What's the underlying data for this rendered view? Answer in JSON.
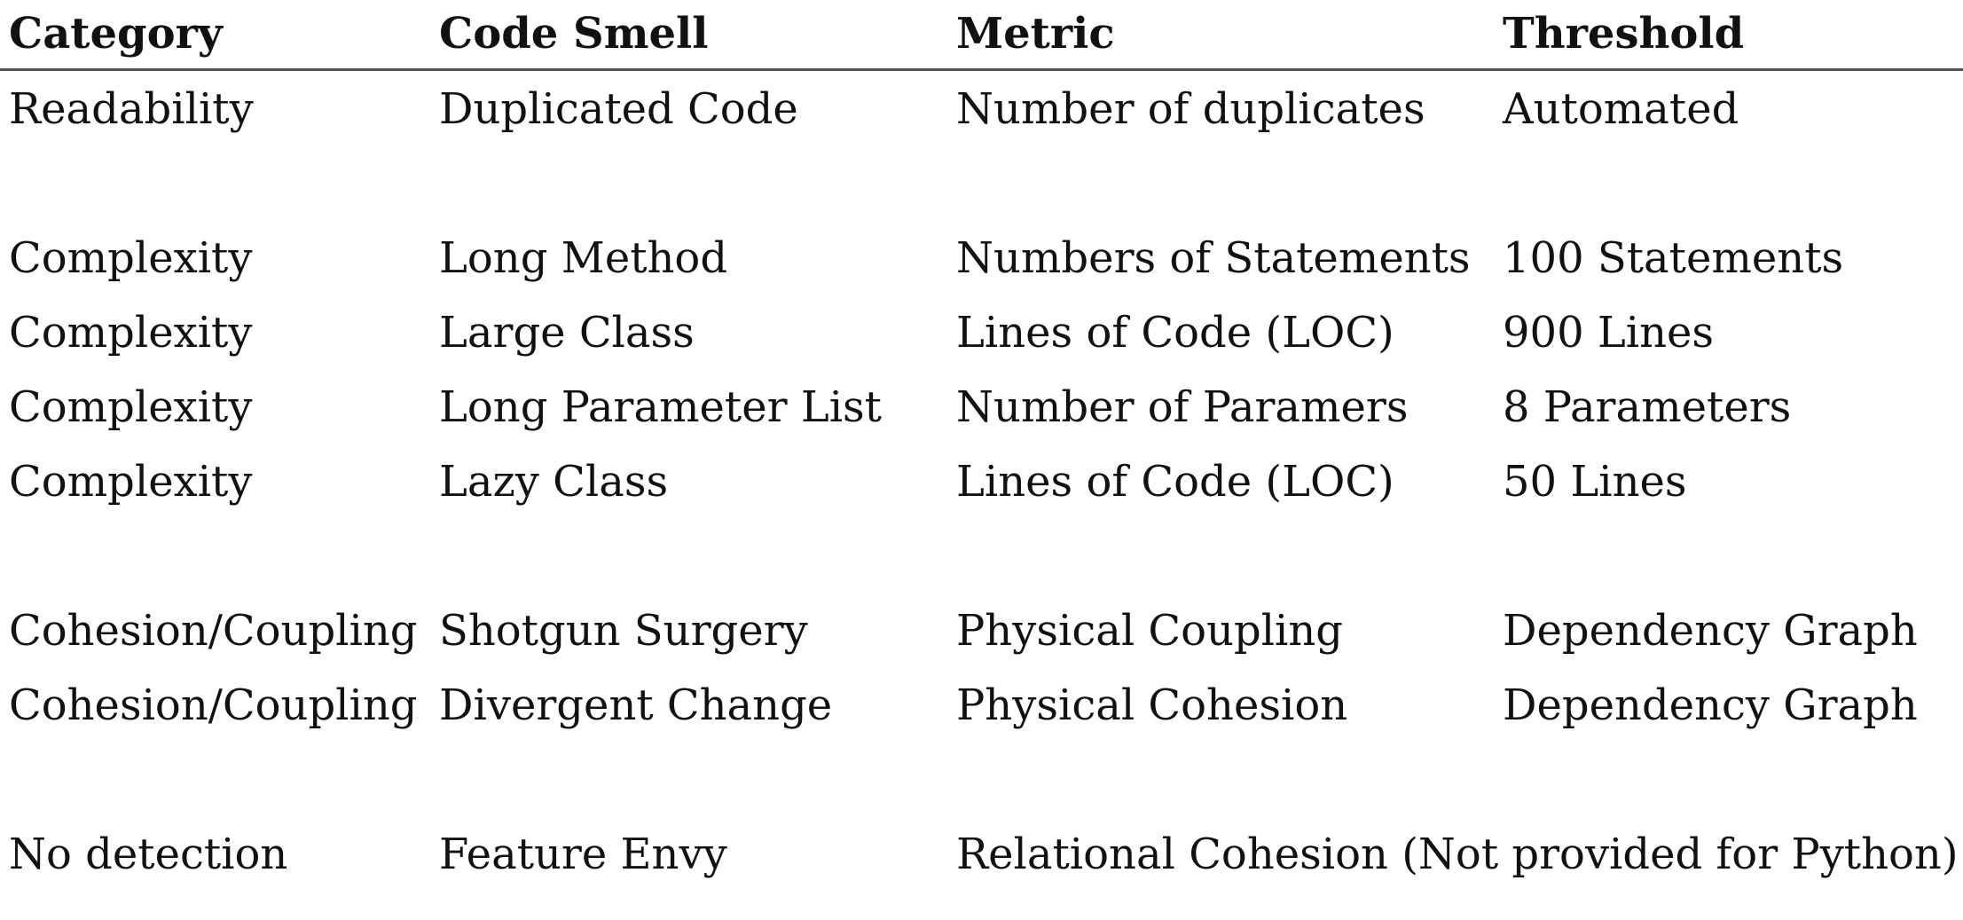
{
  "table": {
    "headers": [
      "Category",
      "Code Smell",
      "Metric",
      "Threshold"
    ],
    "rows": [
      {
        "category": "Readability",
        "smell": "Duplicated Code",
        "metric": "Number of duplicates",
        "threshold": "Automated"
      },
      {
        "category": "Complexity",
        "smell": "Long Method",
        "metric": "Numbers of Statements",
        "threshold": "100 Statements"
      },
      {
        "category": "Complexity",
        "smell": "Large Class",
        "metric": "Lines of Code (LOC)",
        "threshold": "900 Lines"
      },
      {
        "category": "Complexity",
        "smell": "Long Parameter List",
        "metric": "Number of Paramers",
        "threshold": "8 Parameters"
      },
      {
        "category": "Complexity",
        "smell": "Lazy Class",
        "metric": "Lines of Code (LOC)",
        "threshold": "50 Lines"
      },
      {
        "category": "Cohesion/Coupling",
        "smell": "Shotgun Surgery",
        "metric": "Physical Coupling",
        "threshold": "Dependency Graph"
      },
      {
        "category": "Cohesion/Coupling",
        "smell": "Divergent Change",
        "metric": "Physical Cohesion",
        "threshold": "Dependency Graph"
      },
      {
        "category": "No detection",
        "smell": "Feature Envy",
        "metric": "Relational Cohesion (Not provided for Python)",
        "threshold": ""
      }
    ]
  }
}
